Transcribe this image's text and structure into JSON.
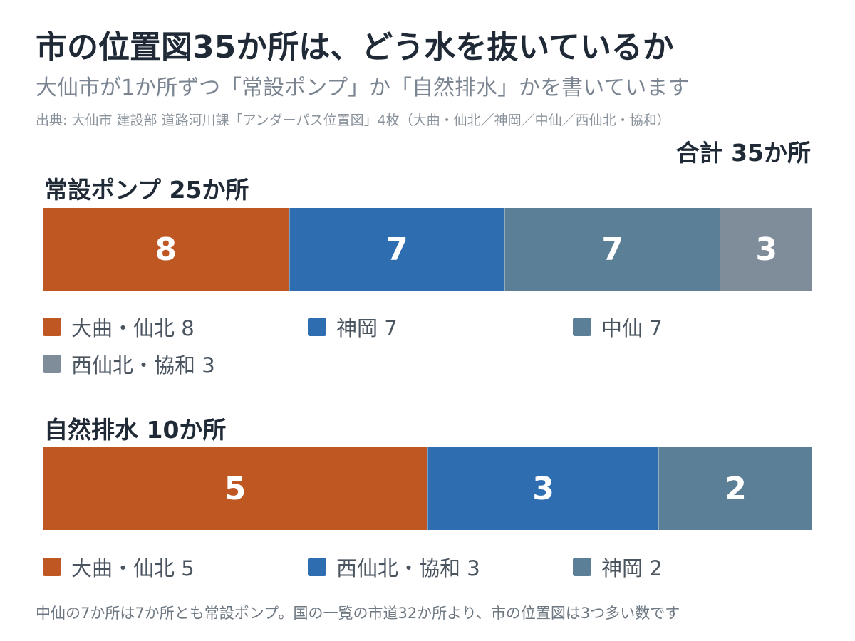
{
  "header": {
    "title": "市の位置図35か所は、どう水を抜いているか",
    "subtitle": "大仙市が1か所ずつ「常設ポンプ」か「自然排水」かを書いています",
    "source": "出典: 大仙市 建設部 道路河川課「アンダーパス位置図」4枚（大曲・仙北／神岡／中仙／西仙北・協和）",
    "total": "合計 35か所"
  },
  "footnote": "中仙の7か所は7か所とも常設ポンプ。国の一覧の市道32か所より、市の位置図は3つ多い数です",
  "chart_data": [
    {
      "type": "bar",
      "orientation": "horizontal-stacked",
      "title": "常設ポンプ 25か所",
      "total": 25,
      "series": [
        {
          "name": "大曲・仙北",
          "value": 8,
          "label": "8",
          "legend": "大曲・仙北 8",
          "color": "#bf5722"
        },
        {
          "name": "神岡",
          "value": 7,
          "label": "7",
          "legend": "神岡 7",
          "color": "#2e6db0"
        },
        {
          "name": "中仙",
          "value": 7,
          "label": "7",
          "legend": "中仙 7",
          "color": "#5b7f97"
        },
        {
          "name": "西仙北・協和",
          "value": 3,
          "label": "3",
          "legend": "西仙北・協和 3",
          "color": "#7f8c99"
        }
      ]
    },
    {
      "type": "bar",
      "orientation": "horizontal-stacked",
      "title": "自然排水 10か所",
      "total": 10,
      "series": [
        {
          "name": "大曲・仙北",
          "value": 5,
          "label": "5",
          "legend": "大曲・仙北 5",
          "color": "#bf5722"
        },
        {
          "name": "西仙北・協和",
          "value": 3,
          "label": "3",
          "legend": "西仙北・協和 3",
          "color": "#2e6db0"
        },
        {
          "name": "神岡",
          "value": 2,
          "label": "2",
          "legend": "神岡 2",
          "color": "#5b7f97"
        }
      ]
    }
  ]
}
